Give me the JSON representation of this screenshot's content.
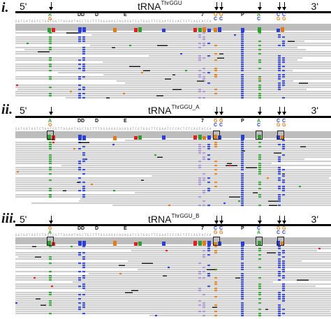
{
  "panels": [
    {
      "numeral": "i.",
      "five_prime": "5'",
      "three_prime": "3'",
      "trna_name": "tRNA",
      "trna_superscript": "ThrGGU",
      "region_labels": [
        "DD",
        "D",
        "E",
        "7",
        "P"
      ],
      "base_labels": [
        {
          "top": "A",
          "bottom": "G"
        },
        {
          "top": "G",
          "bottom": "C"
        },
        {
          "top": "G",
          "bottom": "C"
        },
        {
          "top": "A",
          "bottom": "C"
        },
        {
          "top": "C",
          "bottom": "G"
        },
        {
          "top": "C",
          "bottom": "G"
        }
      ],
      "reference_sequence": "GGTGATAGTCTAGTGGTTAGAATAGCTGCTTTGGGAAGCAGAGGTCGTGGGTTCGAATCCCACTCTCAGCACCA"
    },
    {
      "numeral": "ii.",
      "five_prime": "5'",
      "three_prime": "3'",
      "trna_name": "tRNA",
      "trna_superscript": "ThrGGU_A",
      "region_labels": [
        "DD",
        "D",
        "E",
        "7",
        "P"
      ],
      "base_labels": [
        {
          "top": "A",
          "bottom": "G"
        },
        {
          "top": "G",
          "bottom": "C"
        },
        {
          "top": "G",
          "bottom": "C"
        },
        {
          "top": "A",
          "bottom": "C"
        },
        {
          "top": "C",
          "bottom": "G"
        },
        {
          "top": "C",
          "bottom": "G"
        }
      ],
      "reference_sequence": "GGTGATAGTCTAGTGGTTAGAATAGCTGCTTTGGGAAGCAGAGGTCGTGGGTTCGAATCCCACTCTCAGCACCA"
    },
    {
      "numeral": "iii.",
      "five_prime": "5'",
      "three_prime": "3'",
      "trna_name": "tRNA",
      "trna_superscript": "ThrGGU_B",
      "region_labels": [
        "DD",
        "D",
        "E",
        "7",
        "P"
      ],
      "base_labels": [
        {
          "top": "G",
          "bottom": "A"
        },
        {
          "top": "C",
          "bottom": "G"
        },
        {
          "top": "C",
          "bottom": "G"
        },
        {
          "top": "C",
          "bottom": "A"
        },
        {
          "top": "G",
          "bottom": "C"
        },
        {
          "top": "G",
          "bottom": "C"
        }
      ],
      "reference_sequence": "GGTGATAGTCTAGTGGTTAGAATAGCTGCTTTGGGAAGCAGAGGTCGTGGGTTCGAATCCCACTCTCAGCACCA"
    }
  ],
  "colors": {
    "read_background": "#cfcfcf",
    "coverage_gray": "#bdbdbd",
    "A": "#2e9e2e",
    "C": "#2b3fd6",
    "G": "#e07b1a",
    "T": "#e02020",
    "deletion": "#111111",
    "insertion": "#7b4fd0"
  }
}
